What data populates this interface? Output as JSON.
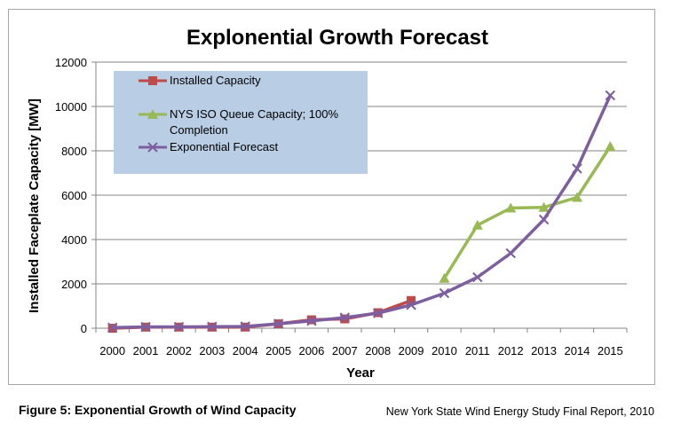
{
  "chart_data": {
    "type": "line",
    "title": "Explonential Growth Forecast",
    "xlabel": "Year",
    "ylabel": "Installed Faceplate Capacity [MW]",
    "x": [
      "2000",
      "2001",
      "2002",
      "2003",
      "2004",
      "2005",
      "2006",
      "2007",
      "2008",
      "2009",
      "2010",
      "2011",
      "2012",
      "2013",
      "2014",
      "2015"
    ],
    "ylim": [
      0,
      12000
    ],
    "yticks": [
      0,
      2000,
      4000,
      6000,
      8000,
      10000,
      12000
    ],
    "grid": true,
    "legend_position": "top-left",
    "series": [
      {
        "name": "Installed Capacity",
        "color": "#be4b48",
        "marker": "square",
        "values": [
          0,
          50,
          50,
          50,
          50,
          200,
          380,
          420,
          700,
          1250,
          null,
          null,
          null,
          null,
          null,
          null
        ]
      },
      {
        "name": "NYS ISO Queue Capacity; 100% Completion",
        "color": "#98b954",
        "marker": "triangle",
        "values": [
          null,
          null,
          null,
          null,
          null,
          null,
          null,
          null,
          null,
          null,
          2250,
          4650,
          5420,
          5450,
          5900,
          8200
        ]
      },
      {
        "name": "Exponential Forecast",
        "color": "#7d5fa0",
        "marker": "x",
        "values": [
          30,
          60,
          60,
          70,
          80,
          200,
          330,
          480,
          680,
          1050,
          1580,
          2300,
          3380,
          4900,
          7200,
          10500
        ]
      }
    ]
  },
  "legend": {
    "items": [
      "Installed Capacity",
      "NYS ISO Queue Capacity; 100%",
      "Completion",
      "Exponential Forecast"
    ],
    "background": "#b9cde5"
  },
  "figure_caption": "Figure 5: Exponential Growth of Wind Capacity",
  "source_note": "New York State Wind Energy Study Final Report, 2010"
}
